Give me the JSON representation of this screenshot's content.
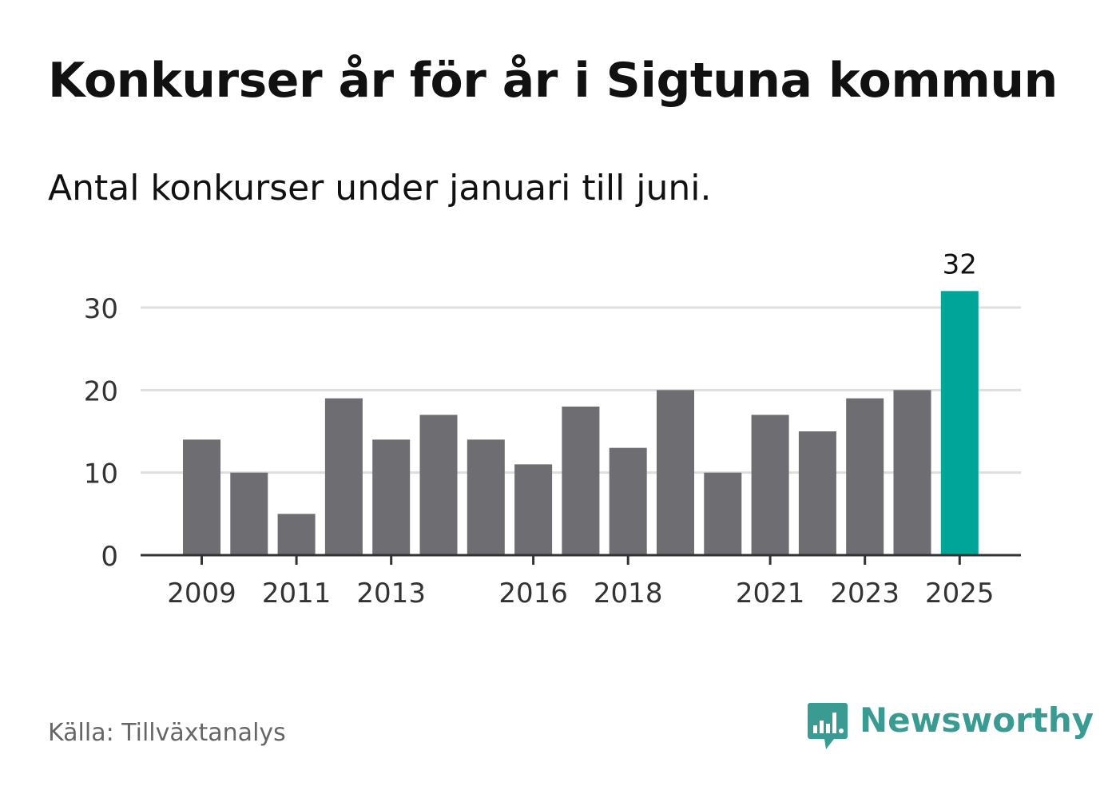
{
  "header": {
    "title": "Konkurser år för år i Sigtuna kommun",
    "subtitle": "Antal konkurser under januari till juni."
  },
  "footer": {
    "source": "Källa: Tillväxtanalys",
    "brand_name": "Newsworthy",
    "brand_icon": "bar-chart-speech-bubble-icon",
    "brand_color": "#3a9b93"
  },
  "chart_data": {
    "type": "bar",
    "title": "Konkurser år för år i Sigtuna kommun",
    "subtitle": "Antal konkurser under januari till juni.",
    "xlabel": "",
    "ylabel": "",
    "categories": [
      "2009",
      "2010",
      "2011",
      "2012",
      "2013",
      "2014",
      "2015",
      "2016",
      "2017",
      "2018",
      "2019",
      "2020",
      "2021",
      "2022",
      "2023",
      "2024",
      "2025"
    ],
    "values": [
      14,
      10,
      5,
      19,
      14,
      17,
      14,
      11,
      18,
      13,
      20,
      10,
      17,
      15,
      19,
      20,
      32
    ],
    "x_tick_labels": [
      "2009",
      "2011",
      "2013",
      "2016",
      "2018",
      "2021",
      "2023",
      "2025"
    ],
    "y_ticks": [
      0,
      10,
      20,
      30
    ],
    "ylim": [
      0,
      32
    ],
    "grid": "horizontal",
    "highlight": {
      "category": "2025",
      "label": "32"
    },
    "colors": {
      "bar": "#6e6d72",
      "highlight": "#00a59a",
      "grid": "#dedede",
      "axis": "#333333",
      "tick_label": "#333333"
    }
  }
}
